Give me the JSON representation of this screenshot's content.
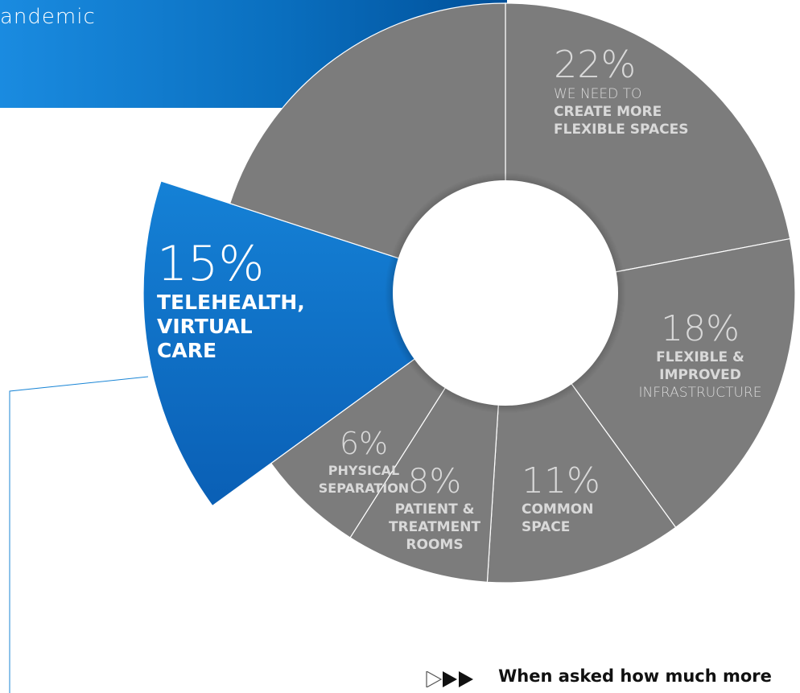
{
  "header": {
    "text": "andemic"
  },
  "colors": {
    "gray": "#7c7c7c",
    "blue": "#0b6fc6",
    "header_blue": "#0a6fbf",
    "label_light": "#d9d9d9",
    "line_blue": "#1b86d6"
  },
  "chart_data": {
    "type": "pie",
    "variant": "donut",
    "slices": [
      {
        "value": 22,
        "label": "22%",
        "lines": [
          {
            "text": "WE NEED TO",
            "style": "light"
          },
          {
            "text": "CREATE MORE",
            "style": "bold"
          },
          {
            "text": "FLEXIBLE SPACES",
            "style": "bold"
          }
        ]
      },
      {
        "value": 18,
        "label": "18%",
        "lines": [
          {
            "text": "FLEXIBLE &",
            "style": "bold"
          },
          {
            "text": "IMPROVED",
            "style": "bold"
          },
          {
            "text": "INFRASTRUCTURE",
            "style": "light"
          }
        ]
      },
      {
        "value": 11,
        "label": "11%",
        "lines": [
          {
            "text": "COMMON",
            "style": "bold"
          },
          {
            "text": "SPACE",
            "style": "bold"
          }
        ]
      },
      {
        "value": 8,
        "label": "8%",
        "lines": [
          {
            "text": "PATIENT &",
            "style": "bold"
          },
          {
            "text": "TREATMENT",
            "style": "bold"
          },
          {
            "text": "ROOMS",
            "style": "bold"
          }
        ]
      },
      {
        "value": 6,
        "label": "6%",
        "lines": [
          {
            "text": "PHYSICAL",
            "style": "bold"
          },
          {
            "text": "SEPARATION",
            "style": "bold"
          }
        ]
      },
      {
        "value": 15,
        "label": "15%",
        "highlight": true,
        "lines": [
          {
            "text": "TELEHEALTH,",
            "style": "bold"
          },
          {
            "text": "VIRTUAL",
            "style": "bold"
          },
          {
            "text": "CARE",
            "style": "bold"
          }
        ]
      },
      {
        "value": 20,
        "label": "",
        "lines": []
      }
    ]
  },
  "footnote": {
    "text": "When asked how much more"
  }
}
